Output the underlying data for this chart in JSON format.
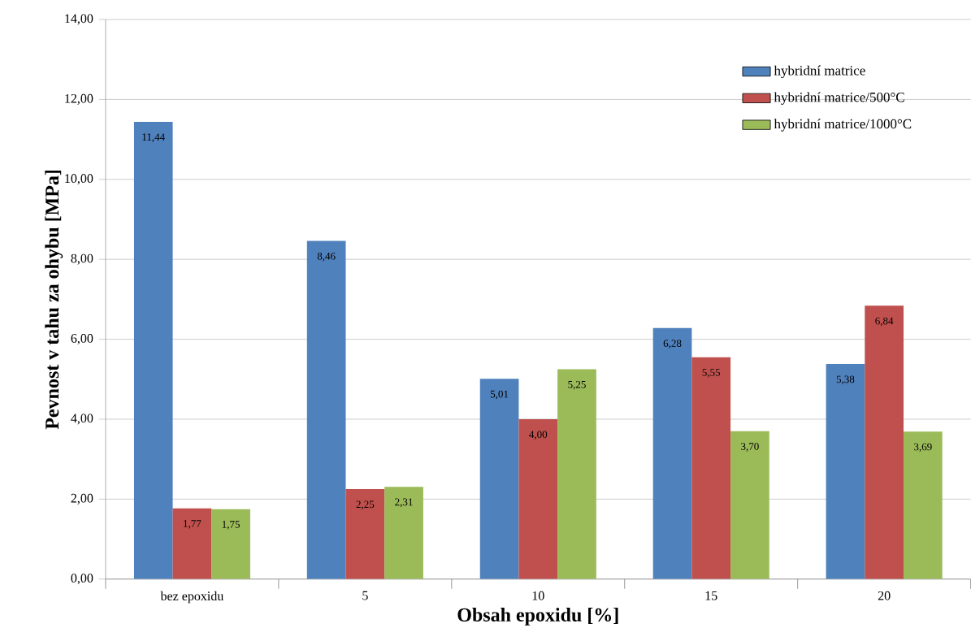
{
  "chart_data": {
    "type": "bar",
    "xlabel": "Obsah epoxidu [%]",
    "ylabel": "Pevnost v tahu za ohybu [MPa]",
    "categories": [
      "bez epoxidu",
      "5",
      "10",
      "15",
      "20"
    ],
    "series": [
      {
        "name": "hybridní matrice",
        "color": "#4f81bd",
        "values": [
          11.44,
          8.46,
          5.01,
          6.28,
          5.38
        ],
        "value_labels": [
          "11,44",
          "8,46",
          "5,01",
          "6,28",
          "5,38"
        ]
      },
      {
        "name": "hybridní matrice/500°C",
        "color": "#c0504d",
        "values": [
          1.77,
          2.25,
          4.0,
          5.55,
          6.84
        ],
        "value_labels": [
          "1,77",
          "2,25",
          "4,00",
          "5,55",
          "6,84"
        ]
      },
      {
        "name": "hybridní matrice/1000°C",
        "color": "#9bbb59",
        "values": [
          1.75,
          2.31,
          5.25,
          3.7,
          3.69
        ],
        "value_labels": [
          "1,75",
          "2,31",
          "5,25",
          "3,70",
          "3,69"
        ]
      }
    ],
    "ylim": [
      0,
      14
    ],
    "yticks": [
      {
        "value": 0,
        "label": "0,00"
      },
      {
        "value": 2,
        "label": "2,00"
      },
      {
        "value": 4,
        "label": "4,00"
      },
      {
        "value": 6,
        "label": "6,00"
      },
      {
        "value": 8,
        "label": "8,00"
      },
      {
        "value": 10,
        "label": "10,00"
      },
      {
        "value": 12,
        "label": "12,00"
      },
      {
        "value": 14,
        "label": "14,00"
      }
    ],
    "grid": "y",
    "legend": "top right"
  }
}
